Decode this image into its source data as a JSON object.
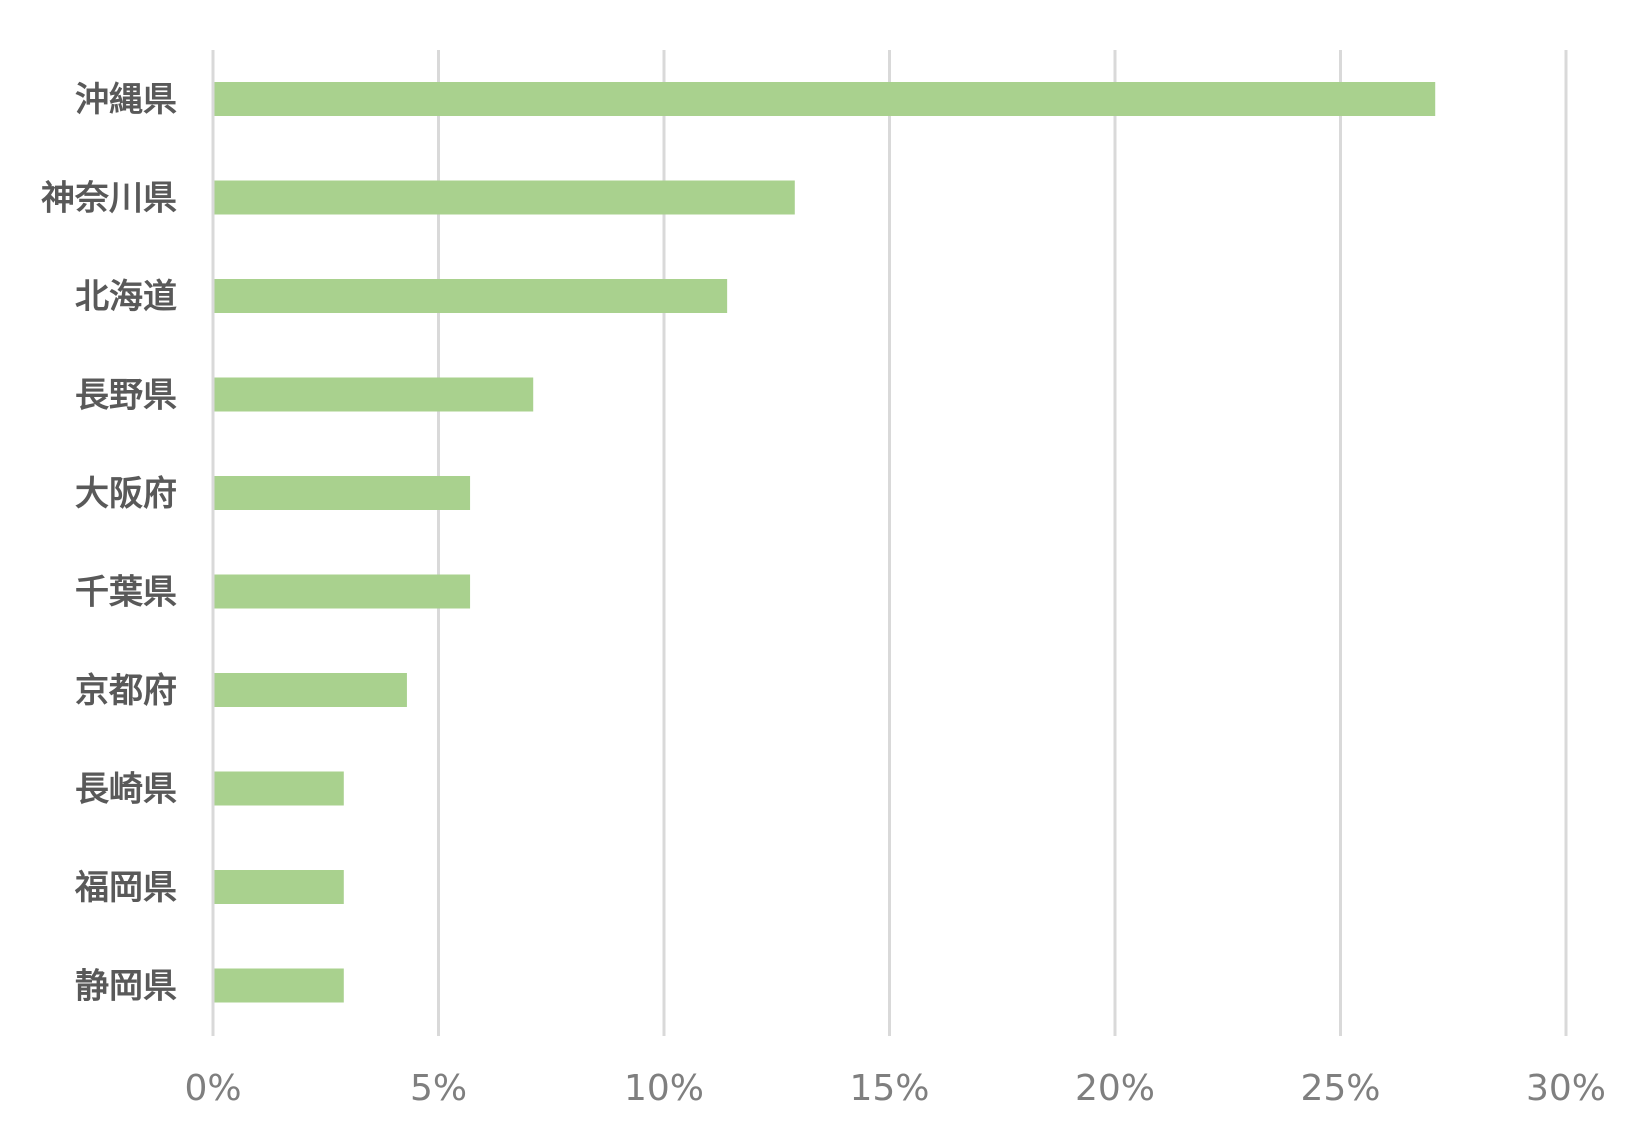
{
  "chart_data": {
    "type": "bar",
    "orientation": "horizontal",
    "title": "",
    "xlabel": "",
    "ylabel": "",
    "categories": [
      "沖縄県",
      "神奈川県",
      "北海道",
      "長野県",
      "大阪府",
      "千葉県",
      "京都府",
      "長崎県",
      "福岡県",
      "静岡県"
    ],
    "series": [
      {
        "values": [
          27.1,
          12.9,
          11.4,
          7.1,
          5.7,
          5.7,
          4.3,
          2.9,
          2.9,
          2.9
        ]
      }
    ],
    "xlim": [
      0,
      30
    ],
    "x_ticks": [
      0,
      5,
      10,
      15,
      20,
      25,
      30
    ],
    "x_tick_labels": [
      "0%",
      "5%",
      "10%",
      "15%",
      "20%",
      "25%",
      "30%"
    ],
    "grid": true,
    "legend": "none",
    "bar_color": "#a9d18e"
  }
}
